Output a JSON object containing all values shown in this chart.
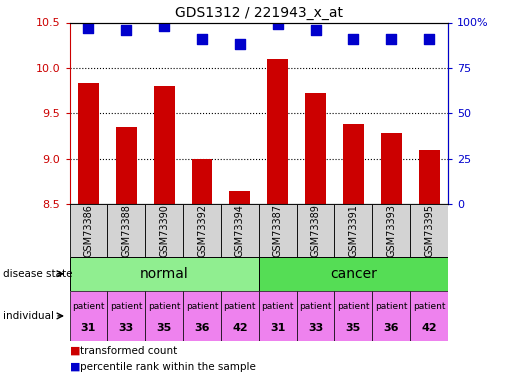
{
  "title": "GDS1312 / 221943_x_at",
  "samples": [
    "GSM73386",
    "GSM73388",
    "GSM73390",
    "GSM73392",
    "GSM73394",
    "GSM73387",
    "GSM73389",
    "GSM73391",
    "GSM73393",
    "GSM73395"
  ],
  "transformed_count": [
    9.83,
    9.35,
    9.8,
    9.0,
    8.65,
    10.1,
    9.72,
    9.38,
    9.28,
    9.1
  ],
  "percentile_rank": [
    97,
    96,
    98,
    91,
    88,
    99,
    96,
    91,
    91,
    91
  ],
  "ylim": [
    8.5,
    10.5
  ],
  "yticks": [
    8.5,
    9.0,
    9.5,
    10.0,
    10.5
  ],
  "y2ticks": [
    0,
    25,
    50,
    75,
    100
  ],
  "bar_color": "#cc0000",
  "dot_color": "#0000cc",
  "disease_state": [
    "normal",
    "normal",
    "normal",
    "normal",
    "normal",
    "cancer",
    "cancer",
    "cancer",
    "cancer",
    "cancer"
  ],
  "individual": [
    "patient\n31",
    "patient\n33",
    "patient\n35",
    "patient\n36",
    "patient\n42",
    "patient\n31",
    "patient\n33",
    "patient\n35",
    "patient\n36",
    "patient\n42"
  ],
  "individual_color": "#ee82ee",
  "normal_color": "#90ee90",
  "cancer_color": "#55dd55",
  "sample_bg_color": "#d3d3d3",
  "bar_width": 0.55,
  "dot_size": 50,
  "label_left": "disease state",
  "label_indiv": "individual",
  "legend_bar": "transformed count",
  "legend_dot": "percentile rank within the sample"
}
